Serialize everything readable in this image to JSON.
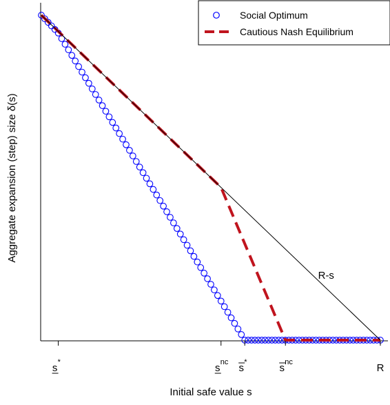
{
  "chart_data": {
    "type": "line",
    "xlabel": "Initial safe value s",
    "ylabel": "Aggregate expansion (step) size  δ(s)",
    "ticks": [
      {
        "key": "s_lower_star",
        "base": "s",
        "sup": "*",
        "mark": "under",
        "x": 0.05
      },
      {
        "key": "s_lower_nc",
        "base": "s",
        "sup": "nc",
        "mark": "under",
        "x": 0.53
      },
      {
        "key": "s_upper_star",
        "base": "s",
        "sup": "*",
        "mark": "over",
        "x": 0.6
      },
      {
        "key": "s_upper_nc",
        "base": "s",
        "sup": "nc",
        "mark": "over",
        "x": 0.72
      },
      {
        "key": "R",
        "base": "R",
        "sup": "",
        "mark": "none",
        "x": 1.0
      }
    ],
    "xlim": [
      0,
      1
    ],
    "ylim": [
      0,
      1
    ],
    "series": [
      {
        "name": "Social Optimum",
        "style": "circles",
        "color": "#0000ff",
        "x": [
          0,
          0.05,
          0.6,
          1.0
        ],
        "y": [
          1.0,
          0.945,
          0.0,
          0.0
        ]
      },
      {
        "name": "Cautious Nash Equilibrium",
        "style": "dashed",
        "color": "#c0141e",
        "x": [
          0,
          0.53,
          0.72,
          1.0
        ],
        "y": [
          1.0,
          0.47,
          0.0,
          0.0
        ]
      },
      {
        "name": "",
        "style": "solid",
        "color": "#000000",
        "x": [
          0,
          1.0
        ],
        "y": [
          1.0,
          0.0
        ]
      }
    ],
    "annotations": [
      {
        "text": "R-s",
        "x": 0.84,
        "y": 0.2
      }
    ],
    "legend": {
      "position": "top-right",
      "entries": [
        {
          "label": "Social Optimum",
          "style": "circle",
          "color": "#0000ff"
        },
        {
          "label": "Cautious Nash Equilibrium",
          "style": "dashed",
          "color": "#c0141e"
        }
      ]
    }
  }
}
